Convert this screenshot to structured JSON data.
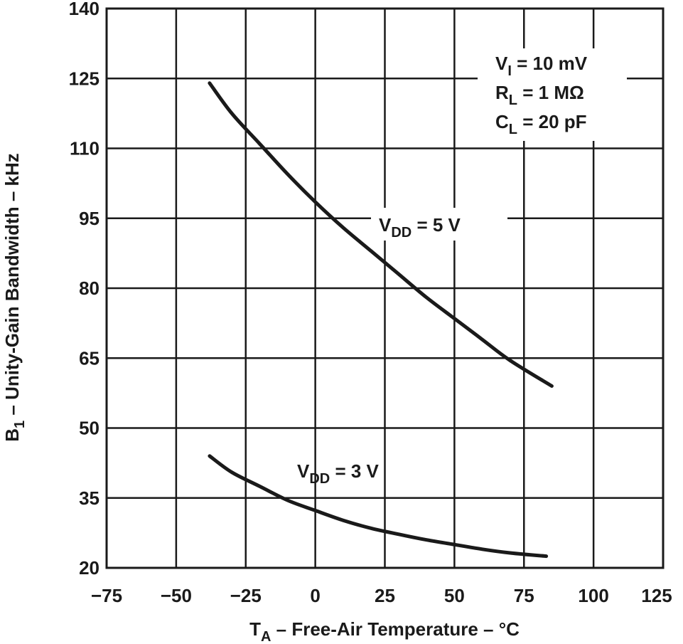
{
  "chart_data": {
    "type": "line",
    "title": "",
    "xlabel": {
      "base": "T",
      "sub": "A",
      "rest": " – Free-Air Temperature – °C"
    },
    "ylabel": {
      "base": "B",
      "sub": "1",
      "rest": " – Unity-Gain Bandwidth – kHz"
    },
    "xlim": [
      -75,
      125
    ],
    "ylim": [
      20,
      140
    ],
    "xticks": [
      -75,
      -50,
      -25,
      0,
      25,
      50,
      75,
      100,
      125
    ],
    "yticks": [
      20,
      35,
      50,
      65,
      80,
      95,
      110,
      125,
      140
    ],
    "xtick_labels": [
      "−75",
      "−50",
      "−25",
      "0",
      "25",
      "50",
      "75",
      "100",
      "125"
    ],
    "ytick_labels": [
      "20",
      "35",
      "50",
      "65",
      "80",
      "95",
      "110",
      "125",
      "140"
    ],
    "grid": true,
    "series": [
      {
        "name": "VDD = 5 V",
        "label": {
          "base": "V",
          "sub": "DD",
          "rest": " = 5 V"
        },
        "x": [
          -38,
          -30,
          -20,
          -10,
          0,
          10,
          20,
          30,
          40,
          50,
          60,
          70,
          85
        ],
        "y": [
          124,
          117.5,
          111,
          104.5,
          98.5,
          93,
          88,
          83,
          78,
          73.5,
          69,
          64.5,
          59
        ]
      },
      {
        "name": "VDD = 3 V",
        "label": {
          "base": "V",
          "sub": "DD",
          "rest": " = 3 V"
        },
        "x": [
          -38,
          -30,
          -20,
          -10,
          0,
          10,
          20,
          30,
          40,
          50,
          60,
          70,
          83
        ],
        "y": [
          44,
          40.5,
          37.5,
          34.5,
          32.3,
          30.2,
          28.5,
          27.2,
          26.0,
          25.0,
          24.0,
          23.2,
          22.5
        ]
      }
    ],
    "conditions": [
      {
        "base": "V",
        "sub": "I",
        "rest": " = 10 mV"
      },
      {
        "base": "R",
        "sub": "L",
        "rest": " = 1 MΩ"
      },
      {
        "base": "C",
        "sub": "L",
        "rest": " = 20 pF"
      }
    ]
  }
}
